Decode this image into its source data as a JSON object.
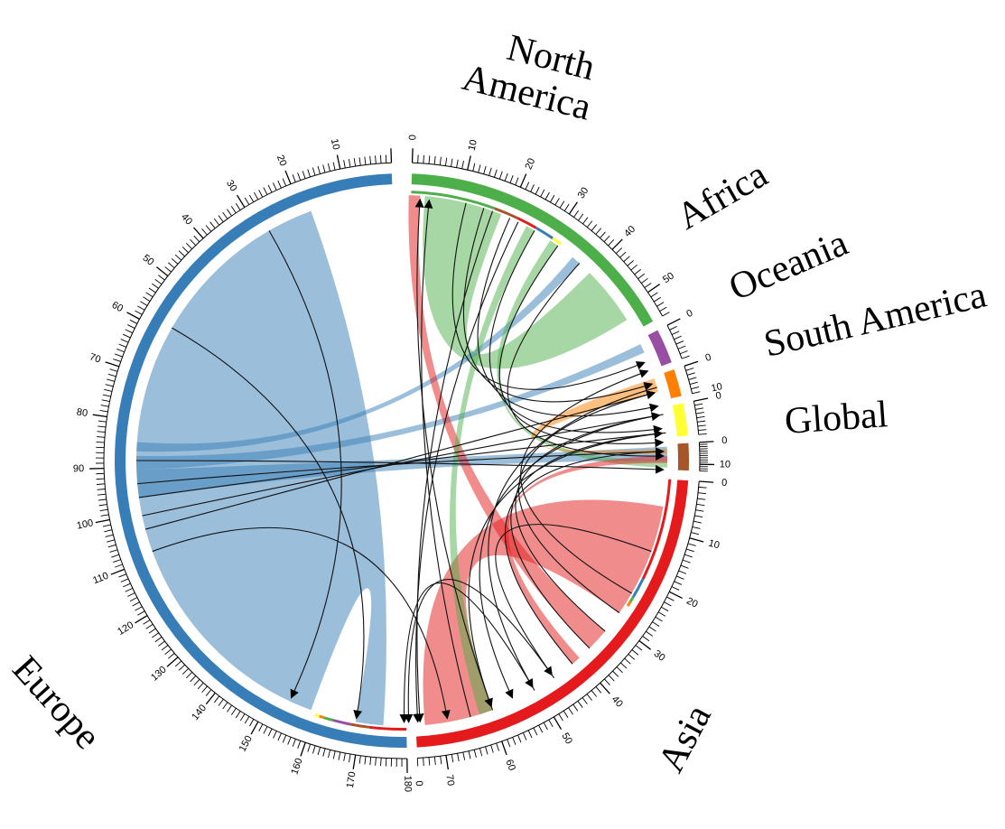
{
  "diagram": {
    "type": "chord",
    "regions": [
      {
        "id": "north-america",
        "label": "North America",
        "label_lines": [
          "North",
          "America"
        ],
        "total": 55,
        "color": "#4daf4a",
        "ticks": [
          "0",
          "10",
          "20",
          "30",
          "40",
          "50"
        ],
        "segments": [
          {
            "target": "north-america",
            "value": 17,
            "color": "#4daf4a"
          },
          {
            "target": "global",
            "value": 5,
            "color": "#a65628"
          },
          {
            "target": "asia",
            "value": 4,
            "color": "#e41a1c"
          },
          {
            "target": "europe",
            "value": 4,
            "color": "#377eb8"
          },
          {
            "target": "south-america",
            "value": 2,
            "color": "#ffff33"
          }
        ]
      },
      {
        "id": "africa",
        "label": "Africa",
        "label_lines": [
          "Africa"
        ],
        "total": 7,
        "color": "#984ea3",
        "ticks": [
          "0"
        ],
        "segments": []
      },
      {
        "id": "oceania",
        "label": "Oceania",
        "label_lines": [
          "Oceania"
        ],
        "total": 6,
        "color": "#ff7f00",
        "ticks": [
          "10",
          "0"
        ],
        "segments": []
      },
      {
        "id": "south-america",
        "label": "South America",
        "label_lines": [
          "South America"
        ],
        "total": 8,
        "color": "#ffff33",
        "ticks": [
          "0"
        ],
        "segments": []
      },
      {
        "id": "global",
        "label": "Global",
        "label_lines": [
          "Global"
        ],
        "total": 13,
        "color": "#a65628",
        "ticks": [
          "0",
          "10"
        ],
        "segments": []
      },
      {
        "id": "asia",
        "label": "Asia",
        "label_lines": [
          "Asia"
        ],
        "total": 75,
        "color": "#e41a1c",
        "ticks": [
          "0",
          "10",
          "20",
          "30",
          "40",
          "50",
          "60",
          "70",
          "0"
        ],
        "segments": [
          {
            "target": "asia",
            "value": 20,
            "color": "#e41a1c"
          },
          {
            "target": "europe",
            "value": 4,
            "color": "#377eb8"
          },
          {
            "target": "north-america",
            "value": 1,
            "color": "#4daf4a"
          },
          {
            "target": "oceania",
            "value": 1,
            "color": "#ff7f00"
          }
        ]
      },
      {
        "id": "europe",
        "label": "Europe",
        "label_lines": [
          "Europe"
        ],
        "total": 180,
        "color": "#377eb8",
        "ticks": [
          "10",
          "20",
          "30",
          "40",
          "50",
          "60",
          "70",
          "80",
          "90",
          "100",
          "110",
          "120",
          "130",
          "140",
          "150",
          "160",
          "170",
          "180"
        ],
        "segments": [
          {
            "target": "asia",
            "value": 8,
            "color": "#e41a1c"
          },
          {
            "target": "global",
            "value": 4,
            "color": "#a65628"
          },
          {
            "target": "africa",
            "value": 4,
            "color": "#984ea3"
          },
          {
            "target": "north-america",
            "value": 2,
            "color": "#4daf4a"
          },
          {
            "target": "oceania",
            "value": 1,
            "color": "#ff7f00"
          },
          {
            "target": "south-america",
            "value": 1,
            "color": "#ffff33"
          }
        ]
      }
    ],
    "ribbons": [
      {
        "from": "europe",
        "to": "europe",
        "color": "#377eb8"
      },
      {
        "from": "asia",
        "to": "asia",
        "color": "#e41a1c"
      },
      {
        "from": "north-america",
        "to": "north-america",
        "color": "#4daf4a"
      },
      {
        "from": "europe",
        "to": "global",
        "color": "#377eb8"
      },
      {
        "from": "europe",
        "to": "africa",
        "color": "#377eb8"
      },
      {
        "from": "europe",
        "to": "north-america",
        "color": "#377eb8"
      },
      {
        "from": "asia",
        "to": "north-america",
        "color": "#e41a1c"
      },
      {
        "from": "north-america",
        "to": "asia",
        "color": "#4daf4a"
      },
      {
        "from": "north-america",
        "to": "global",
        "color": "#4daf4a"
      },
      {
        "from": "asia",
        "to": "global",
        "color": "#e41a1c"
      },
      {
        "from": "oceania",
        "to": "global",
        "color": "#ff7f00"
      }
    ]
  }
}
